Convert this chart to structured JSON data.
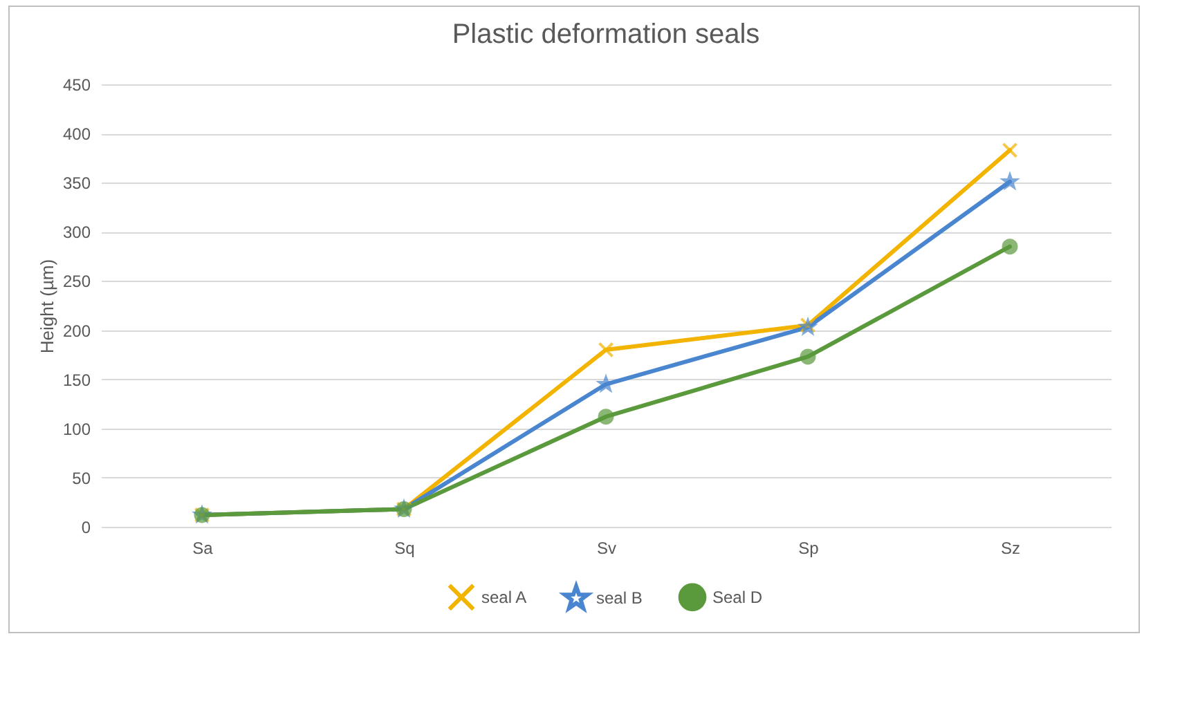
{
  "chart_data": {
    "type": "line",
    "title": "Plastic deformation seals",
    "ylabel": "Height (µm)",
    "categories": [
      "Sa",
      "Sq",
      "Sv",
      "Sp",
      "Sz"
    ],
    "series": [
      {
        "name": "seal A",
        "color": "#f2b400",
        "marker": "cross",
        "values": [
          12,
          18,
          180,
          205,
          383
        ]
      },
      {
        "name": "seal B",
        "color": "#4a86cf",
        "marker": "star",
        "values": [
          12,
          18,
          145,
          203,
          351
        ]
      },
      {
        "name": "Seal D",
        "color": "#5a9a3c",
        "marker": "circle",
        "values": [
          12,
          18,
          112,
          173,
          285
        ]
      }
    ],
    "ylim": [
      0,
      450
    ],
    "yticks": [
      0,
      50,
      100,
      150,
      200,
      250,
      300,
      350,
      400,
      450
    ],
    "grid": "y",
    "legend": "bottom",
    "line_style": "solid"
  }
}
